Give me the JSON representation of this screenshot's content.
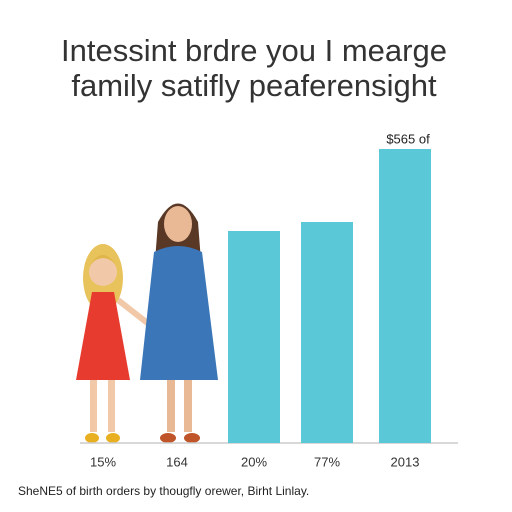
{
  "chart_data": {
    "type": "bar",
    "title": [
      "Intessint brdre you I mearge",
      "family satifly peaferensight"
    ],
    "categories": [
      "15%",
      "164",
      "20%",
      "77%",
      "2013"
    ],
    "values": [
      null,
      null,
      212,
      221,
      294
    ],
    "color": "#5bc8d8",
    "annotation": "$565 of",
    "caption": "SheNE5 of birth orders by thougfly orewer, Birht Linlay."
  }
}
